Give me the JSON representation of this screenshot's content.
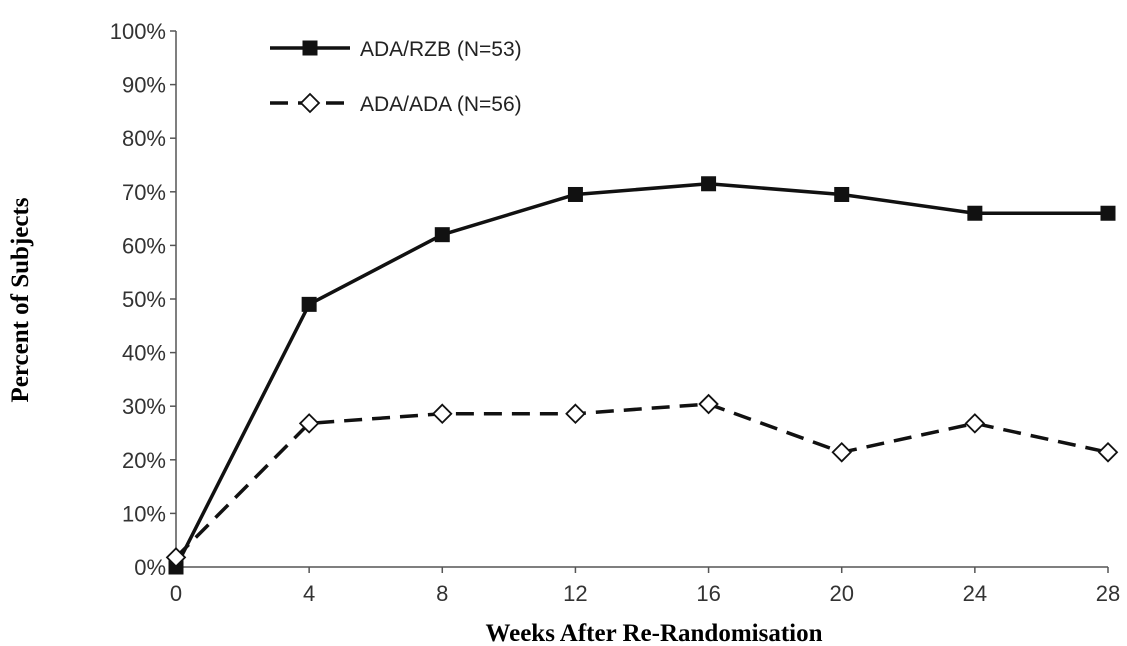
{
  "chart_data": {
    "type": "line",
    "xlabel": "Weeks After Re-Randomisation",
    "ylabel": "Percent of Subjects",
    "x": [
      0,
      4,
      8,
      12,
      16,
      20,
      24,
      28
    ],
    "xlim": [
      0,
      28
    ],
    "ylim": [
      0,
      100
    ],
    "y_ticks": [
      "0%",
      "10%",
      "20%",
      "30%",
      "40%",
      "50%",
      "60%",
      "70%",
      "80%",
      "90%",
      "100%"
    ],
    "x_ticks": [
      "0",
      "4",
      "8",
      "12",
      "16",
      "20",
      "24",
      "28"
    ],
    "grid": false,
    "legend_position": "top-left",
    "series": [
      {
        "name": "ADA/RZB (N=53)",
        "marker": "filled-square",
        "line_style": "solid",
        "color": "#111111",
        "values": [
          0,
          49,
          62,
          69.5,
          71.5,
          69.5,
          66,
          66
        ]
      },
      {
        "name": "ADA/ADA (N=56)",
        "marker": "open-diamond",
        "line_style": "dashed",
        "color": "#111111",
        "values": [
          1.8,
          26.8,
          28.6,
          28.6,
          30.4,
          21.4,
          26.8,
          21.4
        ]
      }
    ]
  }
}
